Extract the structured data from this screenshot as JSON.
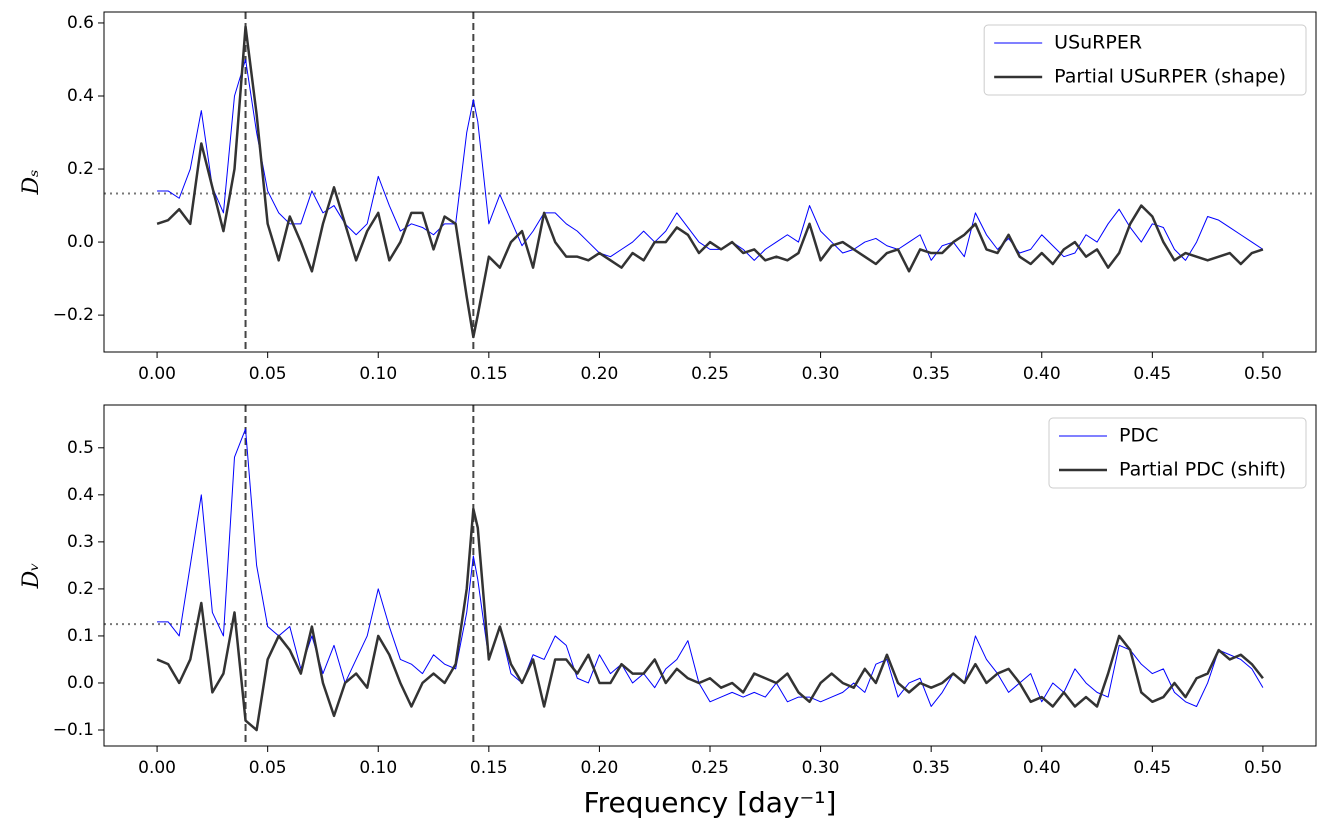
{
  "chart_data": [
    {
      "type": "line",
      "ylabel": "Dₛ",
      "x": [
        0,
        0.005,
        0.01,
        0.015,
        0.02,
        0.025,
        0.03,
        0.035,
        0.04,
        0.045,
        0.05,
        0.055,
        0.06,
        0.065,
        0.07,
        0.075,
        0.08,
        0.085,
        0.09,
        0.095,
        0.1,
        0.105,
        0.11,
        0.115,
        0.12,
        0.125,
        0.13,
        0.135,
        0.14,
        0.143,
        0.145,
        0.15,
        0.155,
        0.16,
        0.165,
        0.17,
        0.175,
        0.18,
        0.185,
        0.19,
        0.195,
        0.2,
        0.205,
        0.21,
        0.215,
        0.22,
        0.225,
        0.23,
        0.235,
        0.24,
        0.245,
        0.25,
        0.255,
        0.26,
        0.265,
        0.27,
        0.275,
        0.28,
        0.285,
        0.29,
        0.295,
        0.3,
        0.305,
        0.31,
        0.315,
        0.32,
        0.325,
        0.33,
        0.335,
        0.34,
        0.345,
        0.35,
        0.355,
        0.36,
        0.365,
        0.37,
        0.375,
        0.38,
        0.385,
        0.39,
        0.395,
        0.4,
        0.405,
        0.41,
        0.415,
        0.42,
        0.425,
        0.43,
        0.435,
        0.44,
        0.445,
        0.45,
        0.455,
        0.46,
        0.465,
        0.47,
        0.475,
        0.48,
        0.485,
        0.49,
        0.495,
        0.5
      ],
      "series": [
        {
          "name": "USuRPER",
          "color": "#0000ff",
          "linewidth": 1,
          "values": [
            0.14,
            0.14,
            0.12,
            0.2,
            0.36,
            0.15,
            0.08,
            0.4,
            0.5,
            0.3,
            0.14,
            0.08,
            0.05,
            0.05,
            0.14,
            0.08,
            0.1,
            0.05,
            0.02,
            0.05,
            0.18,
            0.1,
            0.03,
            0.05,
            0.04,
            0.02,
            0.05,
            0.05,
            0.3,
            0.39,
            0.33,
            0.05,
            0.13,
            0.06,
            -0.01,
            0.03,
            0.08,
            0.08,
            0.05,
            0.03,
            0,
            -0.03,
            -0.04,
            -0.02,
            0,
            0.03,
            0,
            0.03,
            0.08,
            0.04,
            0,
            -0.02,
            -0.02,
            0,
            -0.02,
            -0.05,
            -0.02,
            0,
            0.02,
            0,
            0.1,
            0.03,
            0,
            -0.03,
            -0.02,
            0,
            0.01,
            -0.01,
            -0.02,
            0,
            0.02,
            -0.05,
            -0.01,
            0,
            -0.04,
            0.08,
            0.02,
            -0.02,
            0.01,
            -0.03,
            -0.02,
            0.02,
            -0.01,
            -0.04,
            -0.03,
            0.02,
            0,
            0.05,
            0.09,
            0.04,
            0,
            0.05,
            0.04,
            -0.02,
            -0.05,
            0,
            0.07,
            0.06,
            0.04,
            0.02,
            0,
            -0.02
          ]
        },
        {
          "name": "Partial USuRPER (shape)",
          "color": "#333333",
          "linewidth": 2.5,
          "values": [
            0.05,
            0.06,
            0.09,
            0.05,
            0.27,
            0.15,
            0.03,
            0.2,
            0.59,
            0.35,
            0.05,
            -0.05,
            0.07,
            0,
            -0.08,
            0.05,
            0.15,
            0.05,
            -0.05,
            0.03,
            0.08,
            -0.05,
            0,
            0.08,
            0.08,
            -0.02,
            0.07,
            0.05,
            -0.15,
            -0.26,
            -0.2,
            -0.04,
            -0.07,
            0,
            0.03,
            -0.07,
            0.08,
            0,
            -0.04,
            -0.04,
            -0.05,
            -0.03,
            -0.05,
            -0.07,
            -0.03,
            -0.05,
            0,
            0,
            0.04,
            0.02,
            -0.03,
            0,
            -0.02,
            0,
            -0.03,
            -0.02,
            -0.05,
            -0.04,
            -0.05,
            -0.03,
            0.05,
            -0.05,
            -0.01,
            0,
            -0.02,
            -0.04,
            -0.06,
            -0.03,
            -0.02,
            -0.08,
            -0.02,
            -0.03,
            -0.03,
            0,
            0.02,
            0.05,
            -0.02,
            -0.03,
            0.02,
            -0.04,
            -0.06,
            -0.03,
            -0.06,
            -0.02,
            0,
            -0.04,
            -0.02,
            -0.07,
            -0.03,
            0.05,
            0.1,
            0.07,
            0,
            -0.05,
            -0.03,
            -0.04,
            -0.05,
            -0.04,
            -0.03,
            -0.06,
            -0.03,
            -0.02
          ]
        }
      ],
      "xlim": [
        -0.024,
        0.524
      ],
      "xticks": [
        {
          "value": 0,
          "label": "0.00"
        },
        0.05,
        {
          "value": 0.1,
          "label": "0.10"
        },
        0.15,
        {
          "value": 0.2,
          "label": "0.20"
        },
        0.25,
        {
          "value": 0.3,
          "label": "0.30"
        },
        0.35,
        {
          "value": 0.4,
          "label": "0.40"
        },
        0.45,
        {
          "value": 0.5,
          "label": "0.50"
        }
      ],
      "ylim": [
        -0.301,
        0.63
      ],
      "yticks": [
        {
          "value": -0.2,
          "label": "−0.2"
        },
        {
          "value": 0,
          "label": "0.0"
        },
        0.2,
        0.4,
        0.6
      ],
      "vlines": [
        0.04,
        0.143
      ],
      "hline": 0.133,
      "legend": "upper right"
    },
    {
      "type": "line",
      "ylabel": "Dᵥ",
      "xlabel": "Frequency [day⁻¹]",
      "x": [
        0,
        0.005,
        0.01,
        0.015,
        0.02,
        0.025,
        0.03,
        0.035,
        0.04,
        0.045,
        0.05,
        0.055,
        0.06,
        0.065,
        0.07,
        0.075,
        0.08,
        0.085,
        0.09,
        0.095,
        0.1,
        0.105,
        0.11,
        0.115,
        0.12,
        0.125,
        0.13,
        0.135,
        0.14,
        0.143,
        0.145,
        0.15,
        0.155,
        0.16,
        0.165,
        0.17,
        0.175,
        0.18,
        0.185,
        0.19,
        0.195,
        0.2,
        0.205,
        0.21,
        0.215,
        0.22,
        0.225,
        0.23,
        0.235,
        0.24,
        0.245,
        0.25,
        0.255,
        0.26,
        0.265,
        0.27,
        0.275,
        0.28,
        0.285,
        0.29,
        0.295,
        0.3,
        0.305,
        0.31,
        0.315,
        0.32,
        0.325,
        0.33,
        0.335,
        0.34,
        0.345,
        0.35,
        0.355,
        0.36,
        0.365,
        0.37,
        0.375,
        0.38,
        0.385,
        0.39,
        0.395,
        0.4,
        0.405,
        0.41,
        0.415,
        0.42,
        0.425,
        0.43,
        0.435,
        0.44,
        0.445,
        0.45,
        0.455,
        0.46,
        0.465,
        0.47,
        0.475,
        0.48,
        0.485,
        0.49,
        0.495,
        0.5
      ],
      "series": [
        {
          "name": "PDC",
          "color": "#0000ff",
          "linewidth": 1,
          "values": [
            0.13,
            0.13,
            0.1,
            0.25,
            0.4,
            0.15,
            0.1,
            0.48,
            0.54,
            0.25,
            0.12,
            0.1,
            0.12,
            0.03,
            0.1,
            0.02,
            0.08,
            0,
            0.05,
            0.1,
            0.2,
            0.12,
            0.05,
            0.04,
            0.02,
            0.06,
            0.04,
            0.03,
            0.15,
            0.27,
            0.22,
            0.05,
            0.12,
            0.02,
            0,
            0.06,
            0.05,
            0.1,
            0.08,
            0.01,
            0,
            0.06,
            0.02,
            0.04,
            0,
            0.02,
            -0.01,
            0.03,
            0.05,
            0.09,
            0,
            -0.04,
            -0.03,
            -0.02,
            -0.03,
            -0.02,
            -0.03,
            0,
            -0.04,
            -0.03,
            -0.03,
            -0.04,
            -0.03,
            -0.02,
            0,
            -0.02,
            0.04,
            0.05,
            -0.03,
            0,
            0.01,
            -0.05,
            -0.02,
            0.02,
            0,
            0.1,
            0.05,
            0.02,
            -0.02,
            0,
            0.02,
            -0.04,
            0,
            -0.02,
            0.03,
            0,
            -0.02,
            -0.03,
            0.08,
            0.07,
            0.04,
            0.02,
            0.03,
            -0.02,
            -0.04,
            -0.05,
            0,
            0.07,
            0.06,
            0.05,
            0.03,
            -0.01
          ]
        },
        {
          "name": "Partial PDC (shift)",
          "color": "#333333",
          "linewidth": 2.5,
          "values": [
            0.05,
            0.04,
            0,
            0.05,
            0.17,
            -0.02,
            0.02,
            0.15,
            -0.08,
            -0.1,
            0.05,
            0.1,
            0.07,
            0.02,
            0.12,
            0,
            -0.07,
            0,
            0.02,
            -0.01,
            0.1,
            0.06,
            0,
            -0.05,
            0,
            0.02,
            0,
            0.04,
            0.2,
            0.37,
            0.33,
            0.05,
            0.12,
            0.04,
            0,
            0.05,
            -0.05,
            0.05,
            0.05,
            0.02,
            0.06,
            0,
            0,
            0.04,
            0.02,
            0.02,
            0.05,
            0,
            0.03,
            0.01,
            0,
            0.01,
            -0.01,
            0,
            -0.02,
            0.02,
            0.01,
            0,
            0.02,
            -0.02,
            -0.04,
            0,
            0.02,
            0,
            -0.01,
            0.03,
            0,
            0.06,
            0,
            -0.02,
            0,
            -0.01,
            0,
            0.02,
            0,
            0.04,
            0,
            0.02,
            0.03,
            0,
            -0.04,
            -0.03,
            -0.05,
            -0.02,
            -0.05,
            -0.03,
            -0.05,
            0.02,
            0.1,
            0.07,
            -0.02,
            -0.04,
            -0.03,
            0,
            -0.03,
            0.01,
            0.02,
            0.07,
            0.05,
            0.06,
            0.04,
            0.01
          ]
        }
      ],
      "xlim": [
        -0.024,
        0.524
      ],
      "xticks": [
        {
          "value": 0,
          "label": "0.00"
        },
        0.05,
        {
          "value": 0.1,
          "label": "0.10"
        },
        0.15,
        {
          "value": 0.2,
          "label": "0.20"
        },
        0.25,
        {
          "value": 0.3,
          "label": "0.30"
        },
        0.35,
        {
          "value": 0.4,
          "label": "0.40"
        },
        0.45,
        {
          "value": 0.5,
          "label": "0.50"
        }
      ],
      "ylim": [
        -0.134,
        0.591
      ],
      "yticks": [
        {
          "value": -0.1,
          "label": "−0.1"
        },
        {
          "value": 0,
          "label": "0.0"
        },
        0.1,
        0.2,
        0.3,
        0.4,
        0.5
      ],
      "vlines": [
        0.04,
        0.143
      ],
      "hline": 0.125,
      "legend": "upper right"
    }
  ]
}
